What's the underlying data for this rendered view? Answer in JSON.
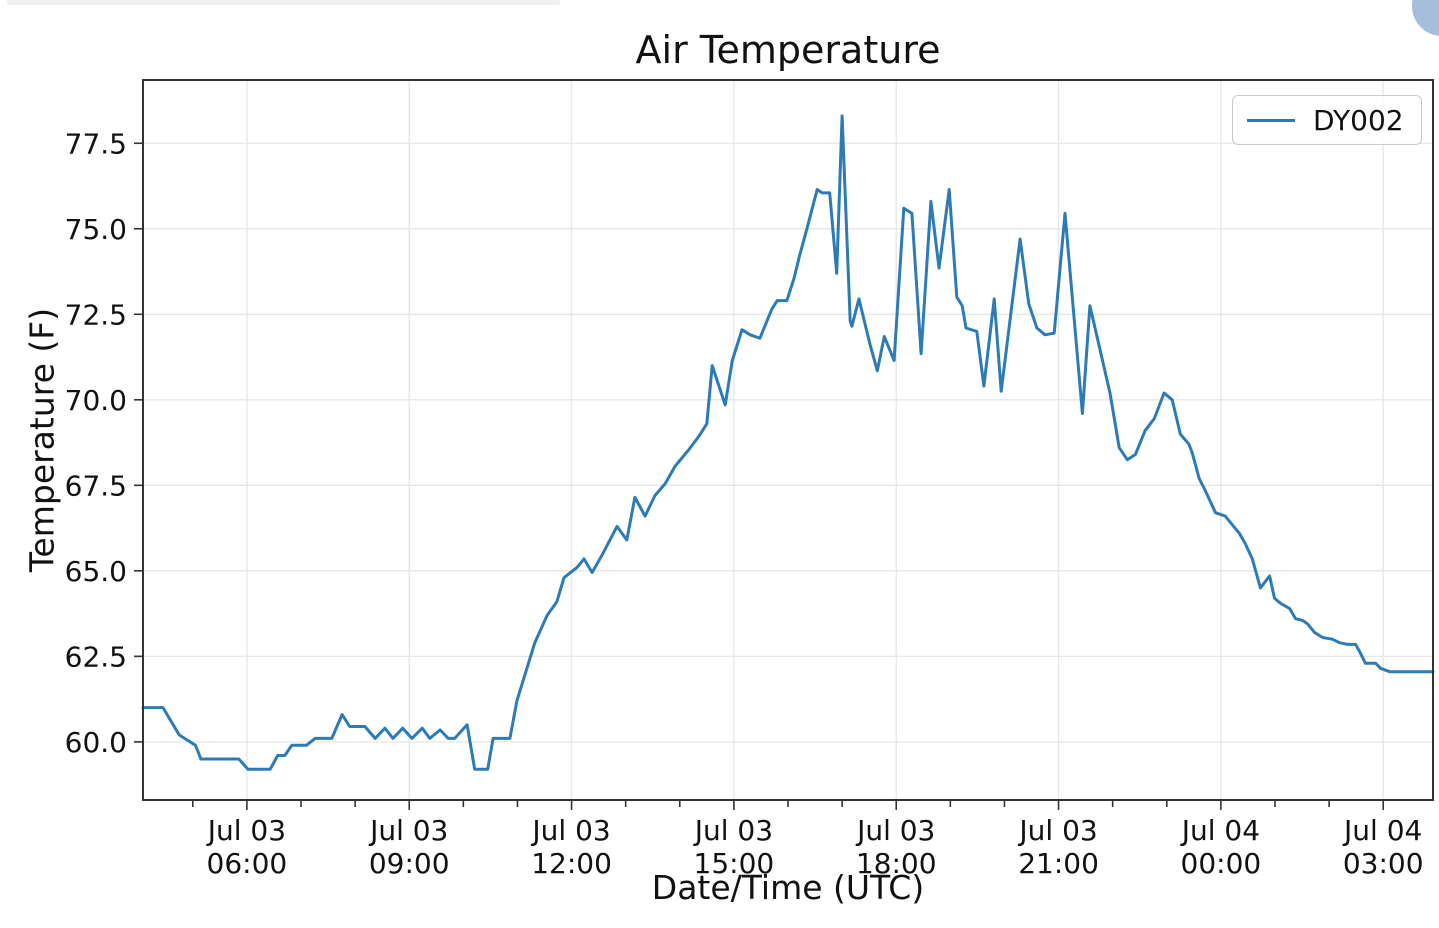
{
  "page": {
    "background": "#ffffff",
    "top_bar_color": "#f0f0f1",
    "corner_circle_color": "#a5bedb"
  },
  "chart_data": {
    "type": "line",
    "title": "Air Temperature",
    "xlabel": "Date/Time (UTC)",
    "ylabel": "Temperature (F)",
    "grid": true,
    "legend_position": "upper right",
    "x_unit": "hours since Jul 03 00:00 UTC",
    "xlim": [
      4.08,
      27.92
    ],
    "ylim": [
      58.3,
      79.35
    ],
    "y_ticks": [
      60.0,
      62.5,
      65.0,
      67.5,
      70.0,
      72.5,
      75.0,
      77.5
    ],
    "x_minor_tick_every_hours": 1,
    "x_major_ticks": [
      {
        "hour": 6,
        "date": "Jul 03",
        "time": "06:00"
      },
      {
        "hour": 9,
        "date": "Jul 03",
        "time": "09:00"
      },
      {
        "hour": 12,
        "date": "Jul 03",
        "time": "12:00"
      },
      {
        "hour": 15,
        "date": "Jul 03",
        "time": "15:00"
      },
      {
        "hour": 18,
        "date": "Jul 03",
        "time": "18:00"
      },
      {
        "hour": 21,
        "date": "Jul 03",
        "time": "21:00"
      },
      {
        "hour": 24,
        "date": "Jul 04",
        "time": "00:00"
      },
      {
        "hour": 27,
        "date": "Jul 04",
        "time": "03:00"
      }
    ],
    "series": [
      {
        "name": "DY002",
        "color": "#2d7bb5",
        "points": [
          [
            4.08,
            61.0
          ],
          [
            4.45,
            61.0
          ],
          [
            4.6,
            60.6
          ],
          [
            4.75,
            60.2
          ],
          [
            4.95,
            60.0
          ],
          [
            5.05,
            59.9
          ],
          [
            5.15,
            59.5
          ],
          [
            5.85,
            59.5
          ],
          [
            6.02,
            59.2
          ],
          [
            6.43,
            59.2
          ],
          [
            6.57,
            59.6
          ],
          [
            6.7,
            59.6
          ],
          [
            6.83,
            59.9
          ],
          [
            7.1,
            59.9
          ],
          [
            7.26,
            60.1
          ],
          [
            7.57,
            60.1
          ],
          [
            7.76,
            60.8
          ],
          [
            7.9,
            60.45
          ],
          [
            8.18,
            60.45
          ],
          [
            8.37,
            60.1
          ],
          [
            8.55,
            60.4
          ],
          [
            8.7,
            60.1
          ],
          [
            8.88,
            60.4
          ],
          [
            9.05,
            60.1
          ],
          [
            9.24,
            60.4
          ],
          [
            9.38,
            60.1
          ],
          [
            9.57,
            60.35
          ],
          [
            9.72,
            60.1
          ],
          [
            9.84,
            60.1
          ],
          [
            10.07,
            60.5
          ],
          [
            10.21,
            59.2
          ],
          [
            10.45,
            59.2
          ],
          [
            10.55,
            60.1
          ],
          [
            10.86,
            60.1
          ],
          [
            10.99,
            61.2
          ],
          [
            11.32,
            62.9
          ],
          [
            11.55,
            63.7
          ],
          [
            11.64,
            63.9
          ],
          [
            11.73,
            64.1
          ],
          [
            11.86,
            64.8
          ],
          [
            12.1,
            65.1
          ],
          [
            12.23,
            65.35
          ],
          [
            12.38,
            64.95
          ],
          [
            12.56,
            65.45
          ],
          [
            12.84,
            66.3
          ],
          [
            13.02,
            65.9
          ],
          [
            13.17,
            67.15
          ],
          [
            13.36,
            66.6
          ],
          [
            13.54,
            67.2
          ],
          [
            13.73,
            67.55
          ],
          [
            13.91,
            68.05
          ],
          [
            14.04,
            68.3
          ],
          [
            14.17,
            68.55
          ],
          [
            14.36,
            68.95
          ],
          [
            14.5,
            69.3
          ],
          [
            14.6,
            71.0
          ],
          [
            14.84,
            69.85
          ],
          [
            14.97,
            71.15
          ],
          [
            15.15,
            72.05
          ],
          [
            15.3,
            71.9
          ],
          [
            15.48,
            71.8
          ],
          [
            15.7,
            72.65
          ],
          [
            15.8,
            72.9
          ],
          [
            15.98,
            72.9
          ],
          [
            16.11,
            73.55
          ],
          [
            16.22,
            74.25
          ],
          [
            16.35,
            75.0
          ],
          [
            16.44,
            75.55
          ],
          [
            16.54,
            76.15
          ],
          [
            16.63,
            76.05
          ],
          [
            16.77,
            76.05
          ],
          [
            16.9,
            73.7
          ],
          [
            17.0,
            78.3
          ],
          [
            17.15,
            72.3
          ],
          [
            17.18,
            72.15
          ],
          [
            17.31,
            72.95
          ],
          [
            17.52,
            71.6
          ],
          [
            17.65,
            70.85
          ],
          [
            17.78,
            71.85
          ],
          [
            17.96,
            71.15
          ],
          [
            18.14,
            75.6
          ],
          [
            18.29,
            75.45
          ],
          [
            18.46,
            71.35
          ],
          [
            18.64,
            75.8
          ],
          [
            18.79,
            73.85
          ],
          [
            18.98,
            76.15
          ],
          [
            19.12,
            73.0
          ],
          [
            19.22,
            72.75
          ],
          [
            19.29,
            72.1
          ],
          [
            19.49,
            72.0
          ],
          [
            19.62,
            70.4
          ],
          [
            19.81,
            72.95
          ],
          [
            19.94,
            70.25
          ],
          [
            20.29,
            74.7
          ],
          [
            20.45,
            72.8
          ],
          [
            20.6,
            72.1
          ],
          [
            20.75,
            71.9
          ],
          [
            20.92,
            71.95
          ],
          [
            21.12,
            75.45
          ],
          [
            21.44,
            69.6
          ],
          [
            21.58,
            72.75
          ],
          [
            21.95,
            70.2
          ],
          [
            22.12,
            68.6
          ],
          [
            22.27,
            68.25
          ],
          [
            22.42,
            68.4
          ],
          [
            22.6,
            69.1
          ],
          [
            22.77,
            69.45
          ],
          [
            22.95,
            70.2
          ],
          [
            23.1,
            70.0
          ],
          [
            23.25,
            69.0
          ],
          [
            23.41,
            68.7
          ],
          [
            23.47,
            68.45
          ],
          [
            23.6,
            67.7
          ],
          [
            23.71,
            67.35
          ],
          [
            23.9,
            66.7
          ],
          [
            24.08,
            66.6
          ],
          [
            24.21,
            66.35
          ],
          [
            24.34,
            66.1
          ],
          [
            24.45,
            65.8
          ],
          [
            24.58,
            65.35
          ],
          [
            24.73,
            64.5
          ],
          [
            24.9,
            64.85
          ],
          [
            24.99,
            64.2
          ],
          [
            25.1,
            64.05
          ],
          [
            25.27,
            63.9
          ],
          [
            25.38,
            63.6
          ],
          [
            25.51,
            63.55
          ],
          [
            25.6,
            63.45
          ],
          [
            25.73,
            63.2
          ],
          [
            25.88,
            63.05
          ],
          [
            26.06,
            63.0
          ],
          [
            26.19,
            62.9
          ],
          [
            26.34,
            62.85
          ],
          [
            26.49,
            62.85
          ],
          [
            26.56,
            62.65
          ],
          [
            26.67,
            62.3
          ],
          [
            26.86,
            62.3
          ],
          [
            26.95,
            62.15
          ],
          [
            27.12,
            62.05
          ],
          [
            27.92,
            62.05
          ]
        ]
      }
    ]
  }
}
